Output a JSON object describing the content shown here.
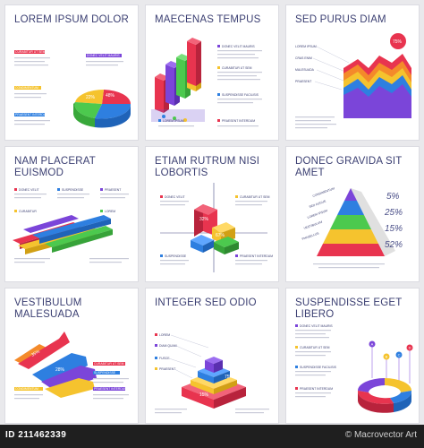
{
  "cards": [
    {
      "title": "LOREM IPSUM DOLOR",
      "labels": [
        "CURABITUR UT SEM",
        "DONEC VELIT MAURIS",
        "CONDIMENTUM",
        "PRAESENT INTERDUM"
      ],
      "values": [
        "48%",
        "22%"
      ]
    },
    {
      "title": "MAECENAS TEMPUS",
      "labels": [
        "DONEC VELIT MAURIS",
        "CURABITUR UT SEM",
        "SUSPENDISSE FACILISIS",
        "LOREM IPSUM",
        "PRAESENT INTERDUM"
      ]
    },
    {
      "title": "SED PURUS DIAM",
      "labels": [
        "LOREM IPSUM",
        "CRAS ENIM",
        "MALESUADA",
        "PRAESENT"
      ],
      "values": [
        "75%"
      ]
    },
    {
      "title": "NAM PLACERAT EUISMOD",
      "labels": [
        "DONEC VELIT",
        "SUSPENDISSE",
        "PRAESENT",
        "CURABITUR",
        "LOREM"
      ]
    },
    {
      "title": "ETIAM RUTRUM NISI LOBORTIS",
      "labels": [
        "DONEC VELIT",
        "CURABITUR UT SEM",
        "SUSPENDISSE",
        "PRAESENT INTERDUM"
      ],
      "values": [
        "32%",
        "67%"
      ]
    },
    {
      "title": "DONEC GRAVIDA SIT AMET",
      "labels": [
        "CONDIMENTUM",
        "SED AUGUE",
        "LOREM IPSUM",
        "VESTIBULUM",
        "PHASELLUS"
      ],
      "values": [
        "5%",
        "25%",
        "15%",
        "52%"
      ]
    },
    {
      "title": "VESTIBULUM MALESUADA",
      "labels": [
        "CURABITUR UT SEM",
        "SUSPENDISSE",
        "PRAESENT INTERDUM",
        "CONDIMENTUM"
      ],
      "values": [
        "35%",
        "28%"
      ]
    },
    {
      "title": "INTEGER SED ODIO",
      "labels": [
        "LOREM",
        "DIAM QUAM",
        "FUSCE",
        "PRAESENT"
      ],
      "values": [
        "75%",
        "15%"
      ]
    },
    {
      "title": "SUSPENDISSE EGET LIBERO",
      "labels": [
        "DONEC VELIT MAURIS",
        "CURABITUR UT SEM",
        "SUSPENDISSE FACILISIS",
        "PRAESENT INTERDUM"
      ],
      "values": [
        "A",
        "B",
        "C",
        "D"
      ]
    }
  ],
  "footer": {
    "id": "ID 211462339",
    "credit": "© Macrovector Art"
  },
  "colors": {
    "red": "#e8344f",
    "blue": "#2e7fe0",
    "green": "#4cc94e",
    "yellow": "#f5c32e",
    "purple": "#7b45d9",
    "orange": "#f48a2a",
    "title": "#3b3f72"
  }
}
